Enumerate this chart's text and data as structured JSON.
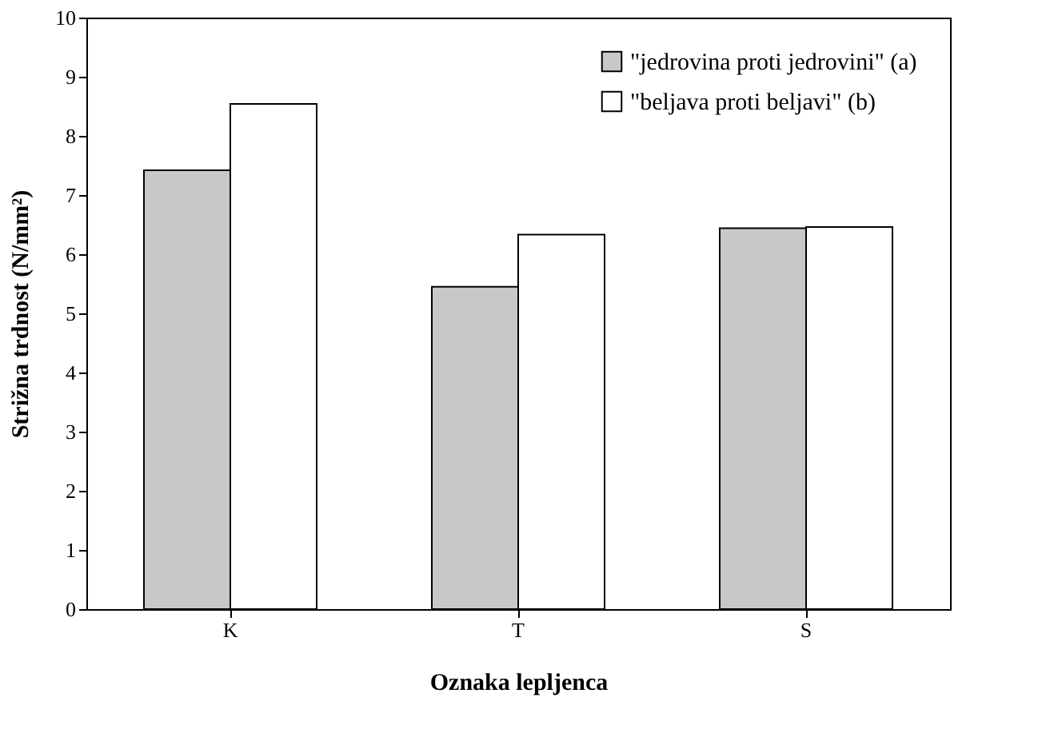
{
  "chart_data": {
    "type": "bar",
    "xlabel": "Oznaka lepljenca",
    "ylabel": "Strižna trdnost (N/mm²)",
    "categories": [
      "K",
      "T",
      "S"
    ],
    "series": [
      {
        "name": "\"jedrovina proti jedrovini\" (a)",
        "color": "#c8c8ca",
        "values": [
          7.42,
          5.45,
          6.44
        ]
      },
      {
        "name": "\"beljava proti beljavi\" (b)",
        "color": "#ffffff",
        "values": [
          8.54,
          6.33,
          6.46
        ]
      }
    ],
    "ylim": [
      0,
      10
    ],
    "yticks": [
      0,
      1,
      2,
      3,
      4,
      5,
      6,
      7,
      8,
      9,
      10
    ],
    "grid": false,
    "legend": "top right"
  }
}
